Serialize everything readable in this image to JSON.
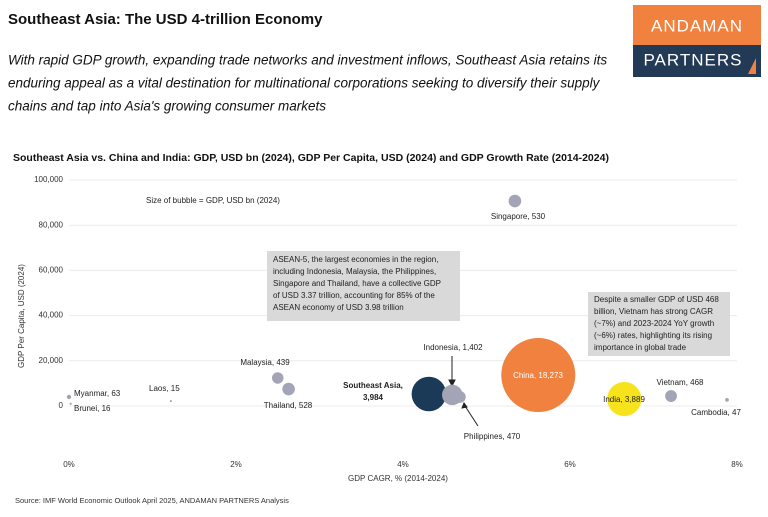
{
  "header": {
    "title": "Southeast Asia: The USD 4-trillion Economy",
    "subtitle_lines": [
      "With rapid GDP growth, expanding trade networks and investment inflows, Southeast Asia retains its",
      "enduring appeal as a vital destination for multinational corporations seeking to diversify their supply",
      "chains and tap into Asia's growing consumer markets"
    ],
    "logo": [
      "ANDAMAN",
      "PARTNERS"
    ]
  },
  "chart_data": {
    "type": "bubble",
    "title": "Southeast Asia vs. China and India: GDP, USD bn (2024), GDP Per Capita, USD (2024) and GDP Growth Rate (2014-2024)",
    "x_label": "GDP CAGR, % (2014-2024)",
    "y_label": "GDP Per Capita, USD (2024)",
    "xlim": [
      0,
      8
    ],
    "xticks": [
      {
        "value": 0,
        "label": "0%"
      },
      {
        "value": 2,
        "label": "2%"
      },
      {
        "value": 4,
        "label": "4%"
      },
      {
        "value": 6,
        "label": "6%"
      },
      {
        "value": 8,
        "label": "8%"
      }
    ],
    "ylim": [
      -10000,
      100000
    ],
    "yticks": [
      {
        "value": 0,
        "label": "0"
      },
      {
        "value": 20000,
        "label": "20,000"
      },
      {
        "value": 40000,
        "label": "40,000"
      },
      {
        "value": 60000,
        "label": "60,000"
      },
      {
        "value": 80000,
        "label": "80,000"
      },
      {
        "value": 100000,
        "label": "100,000"
      }
    ],
    "grid": true,
    "x": [
      0.0,
      0.02,
      1.22,
      2.5,
      2.63,
      4.31,
      4.59,
      4.68,
      5.34,
      5.62,
      6.65,
      7.21,
      7.88
    ],
    "values": [
      4000,
      1000,
      2200,
      12400,
      7500,
      5300,
      4900,
      4000,
      90700,
      13700,
      3100,
      4400,
      2700
    ],
    "sizes": [
      63,
      16,
      15,
      439,
      528,
      3984,
      1402,
      470,
      530,
      18273,
      3889,
      468,
      47
    ],
    "value_labels": [
      "Myanmar, 63",
      "Brunei, 16",
      "Laos, 15",
      "Malaysia, 439",
      "Thailand, 528",
      "Southeast Asia, 3,984",
      "Indonesia, 1,402",
      "Philippines, 470",
      "Singapore, 530",
      "China, 18,273",
      "India, 3,889",
      "Vietnam, 468",
      "Cambodia, 47"
    ],
    "colors": [
      "#a3a5b6",
      "#a3a5b6",
      "#a3a5b6",
      "#a3a5b6",
      "#a3a5b6",
      "#1b3a57",
      "#a3a5b6",
      "#a3a5b6",
      "#a3a5b6",
      "#f0813f",
      "#f7e31c",
      "#a3a5b6",
      "#a3a5b6"
    ],
    "size_note": "Size of bubble = GDP, USD bn (2024)",
    "annotations": [
      [
        "ASEAN-5, the largest economies in the region,",
        "including Indonesia, Malaysia, the Philippines,",
        "Singapore and Thailand, have a collective GDP",
        "of USD 3.37 trillion, accounting for 85% of the",
        "ASEAN economy of USD 3.98 trillion"
      ],
      [
        "Despite a smaller GDP of USD 468",
        "billion, Vietnam has strong CAGR",
        "(~7%) and 2023-2024 YoY growth",
        "(~6%) rates, highlighting its rising",
        "importance in global trade"
      ]
    ],
    "source": "Source: IMF World Economic Outlook April 2025, ANDAMAN PARTNERS Analysis"
  }
}
